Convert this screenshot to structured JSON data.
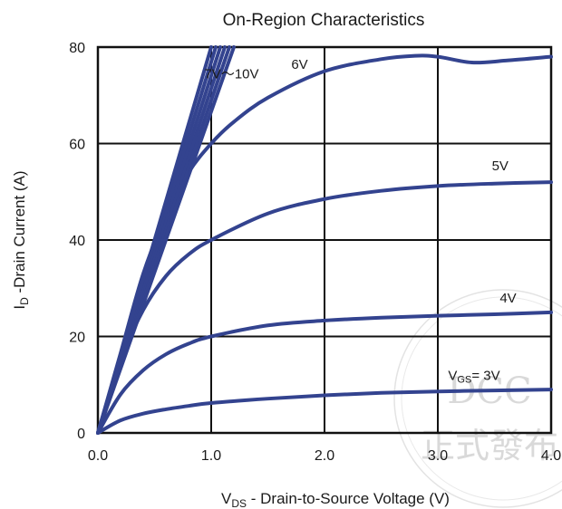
{
  "chart_data": {
    "type": "line",
    "title": "On-Region Characteristics",
    "xlabel_prefix": "V",
    "xlabel_sub": "DS",
    "xlabel_rest": " - Drain-to-Source Voltage (V)",
    "ylabel_prefix": "I",
    "ylabel_sub": "D",
    "ylabel_rest": " -Drain Current (A)",
    "xlim": [
      0,
      4.0
    ],
    "ylim": [
      0,
      80
    ],
    "xticks": [
      "0.0",
      "1.0",
      "2.0",
      "3.0",
      "4.0"
    ],
    "yticks": [
      "0",
      "20",
      "40",
      "60",
      "80"
    ],
    "grid": true,
    "series_color": "#33438f",
    "series": [
      {
        "x": [
          0,
          0.2,
          0.4,
          0.6,
          0.8,
          1.0,
          1.5,
          2.0,
          2.5,
          3.0,
          3.5,
          4.0
        ],
        "y": [
          0,
          2.6,
          4.0,
          4.9,
          5.6,
          6.2,
          7.1,
          7.8,
          8.3,
          8.6,
          8.8,
          9.0
        ]
      },
      {
        "x": [
          0,
          0.2,
          0.4,
          0.6,
          0.8,
          1.0,
          1.5,
          2.0,
          2.5,
          3.0,
          3.5,
          4.0
        ],
        "y": [
          0,
          8,
          13,
          16.3,
          18.5,
          20.0,
          22.3,
          23.3,
          23.9,
          24.3,
          24.6,
          25.0
        ]
      },
      {
        "x": [
          0,
          0.2,
          0.4,
          0.6,
          0.8,
          1.0,
          1.5,
          2.0,
          2.5,
          3.0,
          3.5,
          4.0
        ],
        "y": [
          0,
          15,
          25.5,
          32.5,
          37,
          40.0,
          45.5,
          48.5,
          50.2,
          51.2,
          51.7,
          52.0
        ]
      },
      {
        "x": [
          0,
          0.2,
          0.4,
          0.6,
          0.8,
          1.0,
          1.2,
          1.5,
          2.0,
          2.5,
          2.8,
          3.0,
          3.3,
          3.6,
          4.0
        ],
        "y": [
          0,
          16.5,
          33,
          45,
          54,
          60.0,
          64.5,
          69.5,
          75,
          77.5,
          78.2,
          78.0,
          76.8,
          77.2,
          78.0
        ]
      },
      {
        "x": [
          0,
          0.3,
          0.6,
          0.9,
          1.2
        ],
        "y": [
          0,
          20,
          40,
          60,
          80
        ]
      },
      {
        "x": [
          0,
          0.29,
          0.58,
          0.87,
          1.16
        ],
        "y": [
          0,
          20,
          40,
          60,
          80
        ]
      },
      {
        "x": [
          0,
          0.28,
          0.56,
          0.84,
          1.12
        ],
        "y": [
          0,
          20,
          40,
          60,
          80
        ]
      },
      {
        "x": [
          0,
          0.27,
          0.54,
          0.81,
          1.08
        ],
        "y": [
          0,
          20,
          40,
          60,
          80
        ]
      },
      {
        "x": [
          0,
          0.26,
          0.52,
          0.78,
          1.04
        ],
        "y": [
          0,
          20,
          40,
          60,
          80
        ]
      },
      {
        "x": [
          0,
          0.25,
          0.5,
          0.75,
          1.0
        ],
        "y": [
          0,
          20,
          40,
          60,
          80
        ]
      }
    ],
    "annotations": [
      {
        "text": "7V～10V",
        "x": 1.18,
        "y": 73.5
      },
      {
        "text": "6V",
        "x": 1.78,
        "y": 75.5
      },
      {
        "text": "5V",
        "x": 3.55,
        "y": 54.5
      },
      {
        "text": "4V",
        "x": 3.62,
        "y": 27.0
      },
      {
        "prefix": "V",
        "sub": "GS",
        "rest": "= 3V",
        "x": 3.32,
        "y": 11.0
      }
    ],
    "watermark": {
      "line1": "DCC",
      "line2": "正式發布"
    }
  }
}
